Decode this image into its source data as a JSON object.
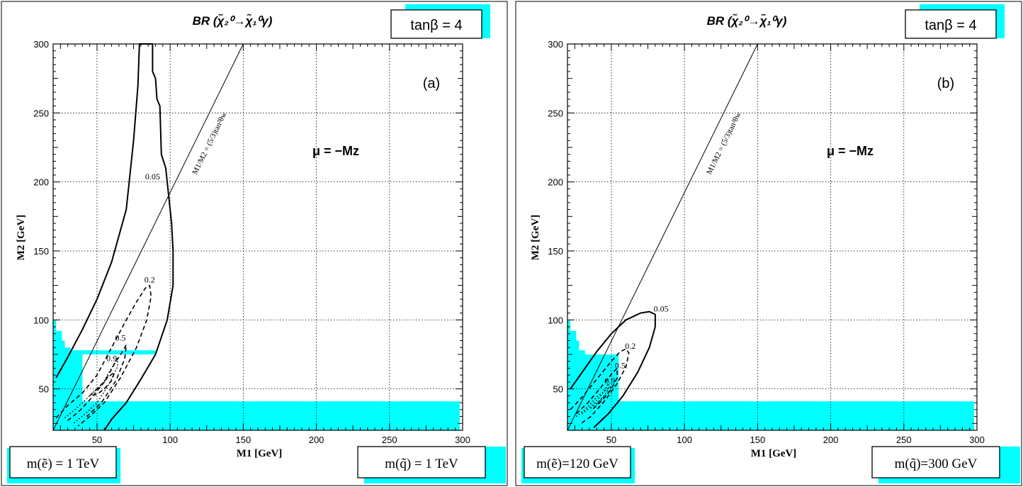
{
  "chart_data": [
    {
      "type": "contour",
      "panel_label": "(a)",
      "title": "BR (χ̃₂⁰→χ̃₁⁰γ)",
      "tan_beta_label": "tanβ = 4",
      "mu_label": "μ = −Mz",
      "xlabel": "M1 [GeV]",
      "ylabel": "M2 [GeV]",
      "xlim": [
        20,
        300
      ],
      "ylim": [
        20,
        300
      ],
      "xticks": [
        50,
        100,
        150,
        200,
        250,
        300
      ],
      "yticks": [
        50,
        100,
        150,
        200,
        250,
        300
      ],
      "grid": true,
      "selectron_label": "m(ẽ) = 1 TeV",
      "squark_label": "m(q̃) = 1 TeV",
      "line_label": "M1/M2 = (5/3)tan²θw",
      "ratio_line": [
        [
          20,
          20
        ],
        [
          150,
          300
        ]
      ],
      "contours": [
        {
          "level": "0.05",
          "style": "solid",
          "points": [
            [
              22,
              58
            ],
            [
              30,
              73
            ],
            [
              40,
              93
            ],
            [
              50,
              115
            ],
            [
              60,
              142
            ],
            [
              70,
              180
            ],
            [
              75,
              230
            ],
            [
              78,
              270
            ],
            [
              79,
              300
            ],
            [
              88,
              300
            ],
            [
              88,
              280
            ],
            [
              90,
              275
            ],
            [
              91,
              260
            ],
            [
              93,
              255
            ],
            [
              94,
              220
            ],
            [
              97,
              210
            ],
            [
              98,
              200
            ],
            [
              99,
              190
            ],
            [
              101,
              170
            ],
            [
              102,
              150
            ],
            [
              102,
              125
            ],
            [
              98,
              100
            ],
            [
              90,
              75
            ],
            [
              80,
              57
            ],
            [
              70,
              40
            ],
            [
              60,
              28
            ],
            [
              55,
              20
            ]
          ],
          "label_at": [
            88,
            202
          ]
        },
        {
          "level": "0.2",
          "style": "dashed",
          "points": [
            [
              22,
              29
            ],
            [
              30,
              38
            ],
            [
              40,
              47
            ],
            [
              50,
              60
            ],
            [
              60,
              80
            ],
            [
              70,
              100
            ],
            [
              77,
              113
            ],
            [
              83,
              123
            ],
            [
              86,
              125
            ],
            [
              87,
              117
            ],
            [
              84,
              100
            ],
            [
              77,
              80
            ],
            [
              66,
              58
            ],
            [
              55,
              40
            ],
            [
              45,
              30
            ],
            [
              37,
              23
            ]
          ],
          "label_at": [
            86,
            127
          ]
        },
        {
          "level": "0.5",
          "style": "dashed",
          "points": [
            [
              30,
              27
            ],
            [
              38,
              34
            ],
            [
              45,
              42
            ],
            [
              55,
              55
            ],
            [
              63,
              70
            ],
            [
              68,
              78
            ],
            [
              70,
              82
            ],
            [
              69,
              72
            ],
            [
              63,
              56
            ],
            [
              53,
              40
            ],
            [
              43,
              30
            ]
          ],
          "label_at": [
            66,
            85
          ]
        },
        {
          "level": "0.9",
          "style": "dotted",
          "points": [
            [
              28,
              29
            ],
            [
              36,
              36
            ],
            [
              44,
              44
            ],
            [
              54,
              54
            ],
            [
              60,
              65
            ],
            [
              64,
              72
            ],
            [
              64,
              66
            ],
            [
              58,
              53
            ],
            [
              50,
              40
            ],
            [
              42,
              32
            ],
            [
              34,
              25
            ]
          ],
          "label_at": [
            60,
            70
          ]
        },
        {
          "level": "",
          "style": "dashed",
          "points": [
            [
              45,
              45
            ],
            [
              52,
              52
            ],
            [
              58,
              59
            ],
            [
              62,
              62
            ],
            [
              60,
              56
            ],
            [
              55,
              50
            ],
            [
              50,
              46
            ],
            [
              45,
              45
            ]
          ]
        }
      ],
      "excluded": [
        [
          [
            20,
            20
          ],
          [
            298,
            20
          ],
          [
            298,
            41
          ],
          [
            40,
            41
          ],
          [
            40,
            78
          ],
          [
            90,
            78
          ],
          [
            90,
            75
          ],
          [
            40,
            75
          ],
          [
            20,
            75
          ]
        ],
        [
          [
            20,
            75
          ],
          [
            20,
            100
          ],
          [
            22,
            100
          ],
          [
            22,
            92
          ],
          [
            26,
            92
          ],
          [
            26,
            85
          ],
          [
            28,
            85
          ],
          [
            28,
            80
          ],
          [
            32,
            80
          ],
          [
            32,
            78
          ],
          [
            40,
            78
          ],
          [
            40,
            75
          ]
        ]
      ]
    },
    {
      "type": "contour",
      "panel_label": "(b)",
      "title": "BR (χ̃₂⁰→χ̃₁⁰γ)",
      "tan_beta_label": "tanβ = 4",
      "mu_label": "μ = −Mz",
      "xlabel": "M1 [GeV]",
      "ylabel": "M2 [GeV]",
      "xlim": [
        20,
        300
      ],
      "ylim": [
        20,
        300
      ],
      "xticks": [
        50,
        100,
        150,
        200,
        250,
        300
      ],
      "yticks": [
        50,
        100,
        150,
        200,
        250,
        300
      ],
      "grid": true,
      "selectron_label": "m(ẽ)=120 GeV",
      "squark_label": "m(q̃)=300 GeV",
      "line_label": "M1/M2 = (5/3)tan²θw",
      "ratio_line": [
        [
          20,
          20
        ],
        [
          150,
          300
        ]
      ],
      "contours": [
        {
          "level": "0.05",
          "style": "solid",
          "points": [
            [
              22,
              50
            ],
            [
              30,
              62
            ],
            [
              40,
              77
            ],
            [
              50,
              90
            ],
            [
              60,
              100
            ],
            [
              70,
              105
            ],
            [
              76,
              106
            ],
            [
              80,
              104
            ],
            [
              80,
              95
            ],
            [
              76,
              80
            ],
            [
              68,
              62
            ],
            [
              58,
              45
            ],
            [
              48,
              32
            ],
            [
              38,
              22
            ]
          ],
          "label_at": [
            84,
            106
          ]
        },
        {
          "level": "0.2",
          "style": "dashed",
          "points": [
            [
              22,
              35
            ],
            [
              30,
              44
            ],
            [
              40,
              57
            ],
            [
              50,
              70
            ],
            [
              56,
              77
            ],
            [
              60,
              79
            ],
            [
              62,
              76
            ],
            [
              60,
              66
            ],
            [
              54,
              54
            ],
            [
              46,
              42
            ],
            [
              36,
              30
            ],
            [
              28,
              24
            ]
          ],
          "label_at": [
            63,
            79
          ]
        },
        {
          "level": "0.5",
          "style": "dashed",
          "points": [
            [
              26,
              32
            ],
            [
              34,
              40
            ],
            [
              42,
              50
            ],
            [
              48,
              58
            ],
            [
              52,
              63
            ],
            [
              54,
              65
            ],
            [
              54,
              58
            ],
            [
              50,
              50
            ],
            [
              44,
              42
            ],
            [
              36,
              34
            ]
          ],
          "label_at": [
            56,
            65
          ]
        },
        {
          "level": "0.9",
          "style": "dotted",
          "points": [
            [
              30,
              32
            ],
            [
              36,
              37
            ],
            [
              42,
              44
            ],
            [
              46,
              50
            ],
            [
              48,
              54
            ],
            [
              48,
              50
            ],
            [
              45,
              45
            ],
            [
              40,
              39
            ]
          ],
          "label_at": [
            49,
            54
          ]
        },
        {
          "level": "",
          "style": "dotted",
          "points": [
            [
              26,
              30
            ],
            [
              32,
              35
            ],
            [
              40,
              44
            ],
            [
              46,
              49
            ],
            [
              50,
              52
            ],
            [
              49,
              48
            ],
            [
              44,
              43
            ],
            [
              36,
              36
            ]
          ]
        }
      ],
      "excluded": [
        [
          [
            20,
            20
          ],
          [
            298,
            20
          ],
          [
            298,
            41
          ],
          [
            20,
            41
          ]
        ],
        [
          [
            20,
            41
          ],
          [
            20,
            100
          ],
          [
            22,
            100
          ],
          [
            22,
            92
          ],
          [
            26,
            92
          ],
          [
            26,
            85
          ],
          [
            28,
            85
          ],
          [
            28,
            78
          ],
          [
            32,
            78
          ],
          [
            32,
            75
          ],
          [
            55,
            75
          ],
          [
            55,
            41
          ]
        ]
      ]
    }
  ]
}
